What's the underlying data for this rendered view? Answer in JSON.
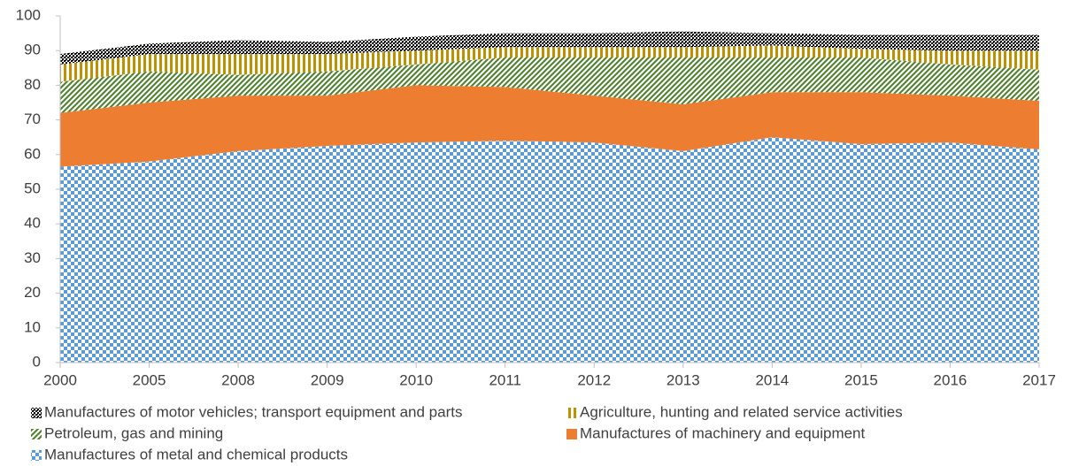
{
  "chart_data": {
    "type": "stacked_area",
    "categories": [
      "2000",
      "2005",
      "2008",
      "2009",
      "2010",
      "2011",
      "2012",
      "2013",
      "2014",
      "2015",
      "2016",
      "2017"
    ],
    "series": [
      {
        "name": "Manufactures of metal and chemical products",
        "color": "#5b9bd5",
        "pattern": "checker",
        "values": [
          56.5,
          58,
          61,
          62.5,
          63.5,
          64,
          63.5,
          61,
          65,
          63,
          63.5,
          61.5
        ]
      },
      {
        "name": "Manufactures of machinery and equipment",
        "color": "#ed7d31",
        "pattern": "solid",
        "values": [
          15.5,
          17,
          16,
          14.5,
          16.5,
          15.5,
          13.5,
          13.5,
          13,
          15,
          13.5,
          14
        ]
      },
      {
        "name": "Petroleum, gas and mining",
        "color": "#548235",
        "pattern": "diagonal",
        "values": [
          9,
          9,
          6,
          7,
          6,
          8.5,
          11,
          13.5,
          10,
          10,
          9,
          9
        ]
      },
      {
        "name": "Agriculture, hunting and related service activities",
        "color": "#bf9000",
        "pattern": "vertical",
        "values": [
          5,
          5,
          6,
          5,
          4,
          3,
          3,
          3,
          3.5,
          2.5,
          4,
          5.5
        ]
      },
      {
        "name": "Manufactures of motor vehicles; transport equipment and parts",
        "color": "#000000",
        "pattern": "dots",
        "values": [
          3,
          3,
          4,
          3.5,
          4,
          4,
          4,
          4.5,
          3.5,
          4,
          4.5,
          4.5
        ]
      }
    ],
    "ylim": [
      0,
      100
    ],
    "yticks": [
      0,
      10,
      20,
      30,
      40,
      50,
      60,
      70,
      80,
      90,
      100
    ]
  }
}
